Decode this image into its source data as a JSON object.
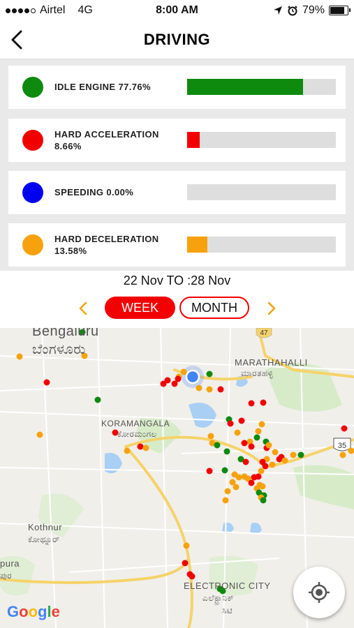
{
  "status_bar": {
    "carrier": "Airtel",
    "network": "4G",
    "time": "8:00 AM",
    "battery": "79%"
  },
  "header": {
    "title": "DRIVING",
    "back_icon": "back-chevron-icon"
  },
  "metrics": [
    {
      "line1": "IDLE ENGINE 77.76%",
      "line2": "",
      "percent": 77.76,
      "color": "#0e8a0e"
    },
    {
      "line1": "HARD ACCELERATION",
      "line2": "8.66%",
      "percent": 8.66,
      "color": "#f20000"
    },
    {
      "line1": "SPEEDING 0.00%",
      "line2": "",
      "percent": 0.0,
      "color": "#0000f0"
    },
    {
      "line1": "HARD DECELERATION",
      "line2": "13.58%",
      "percent": 13.58,
      "color": "#f7a20c"
    }
  ],
  "date_range": "22 Nov TO  :28 Nov",
  "period": {
    "week": "WEEK",
    "month": "MONTH",
    "selected": "WEEK"
  },
  "map": {
    "labels": {
      "bengaluru": "Bengaluru",
      "bengaluru_kn": "ಬೆಂಗಳೂರು",
      "marathahalli": "MARATHAHALLI",
      "marathahalli_kn": "ಮಾರತಹಳ್ಳಿ",
      "koramangala": "KORAMANGALA",
      "koramangala_kn": "ಕೋರಮಂಗಲ",
      "kothnur": "Kothnur",
      "kothnur_kn": "ಕೋಥ್ನೂರ್",
      "pura": "pura",
      "pura_kn": "ಪುರ",
      "electronic_city": "ELECTRONIC CITY",
      "electronic_city_kn1": "ಎಲೆಕ್ಟ್ರಾನಿಕ್",
      "electronic_city_kn2": "ಸಿಟಿ",
      "hw47": "47",
      "hw35": "35",
      "google": "Google"
    },
    "icons": {
      "locate": "locate-crosshair-icon",
      "user_location": "blue-location-dot-icon"
    }
  }
}
